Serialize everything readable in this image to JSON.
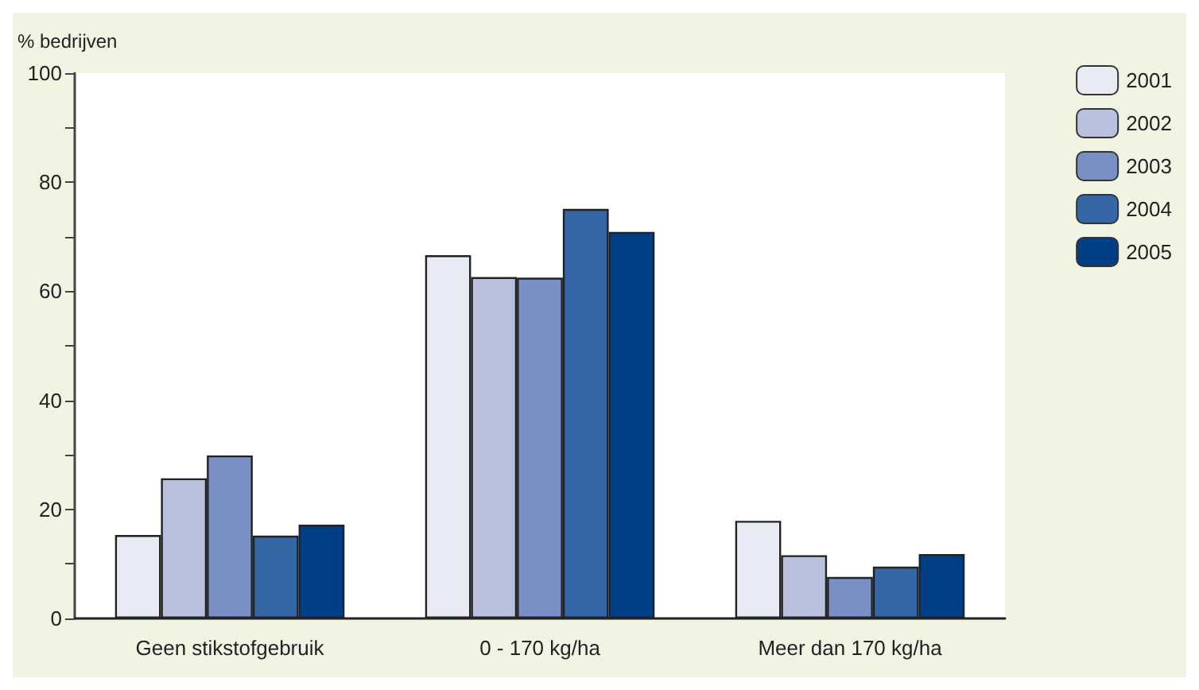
{
  "chart_data": {
    "type": "bar",
    "ylabel": "% bedrijven",
    "categories": [
      "Geen stikstofgebruik",
      "0 - 170 kg/ha",
      "Meer dan 170 kg/ha"
    ],
    "series": [
      {
        "name": "2001",
        "color": "#e8eaf4",
        "values": [
          15.3,
          66.6,
          17.9
        ]
      },
      {
        "name": "2002",
        "color": "#b9c1df",
        "values": [
          25.7,
          62.6,
          11.6
        ]
      },
      {
        "name": "2003",
        "color": "#7a8fc3",
        "values": [
          29.9,
          62.5,
          7.6
        ]
      },
      {
        "name": "2004",
        "color": "#3566a6",
        "values": [
          15.2,
          75.1,
          9.5
        ]
      },
      {
        "name": "2005",
        "color": "#003f85",
        "values": [
          17.2,
          70.9,
          11.8
        ]
      }
    ],
    "ylim": [
      0,
      100
    ],
    "yticks": [
      0,
      {
        "value": 10,
        "label": null
      },
      20,
      {
        "value": 30,
        "label": null
      },
      40,
      {
        "value": 50,
        "label": null
      },
      60,
      {
        "value": 70,
        "label": null
      },
      80,
      {
        "value": 90,
        "label": null
      },
      100
    ],
    "grid": false,
    "legend": "top right"
  }
}
